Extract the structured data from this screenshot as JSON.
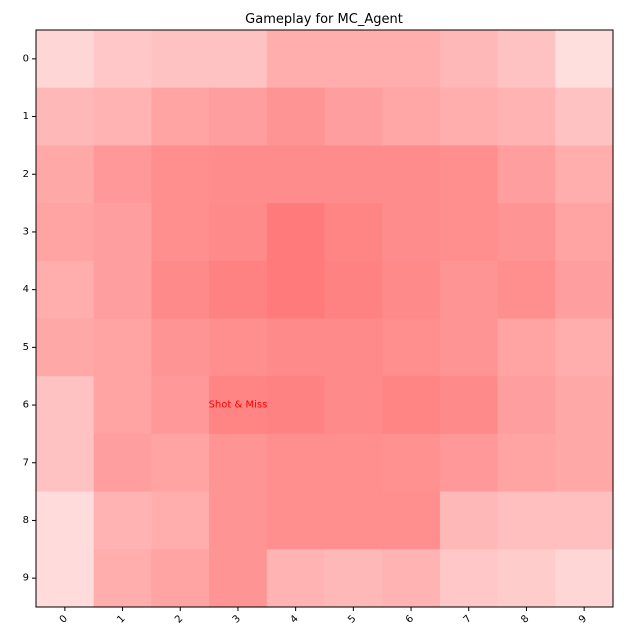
{
  "chart_data": {
    "type": "heatmap",
    "title": "Gameplay for MC_Agent",
    "x_ticks": [
      "0",
      "1",
      "2",
      "3",
      "4",
      "5",
      "6",
      "7",
      "8",
      "9"
    ],
    "y_ticks": [
      "0",
      "1",
      "2",
      "3",
      "4",
      "5",
      "6",
      "7",
      "8",
      "9"
    ],
    "colormap": {
      "low": "#ffffff",
      "high": "#ff0000"
    },
    "values": [
      [
        0.16,
        0.22,
        0.24,
        0.24,
        0.32,
        0.32,
        0.32,
        0.28,
        0.24,
        0.13
      ],
      [
        0.28,
        0.3,
        0.36,
        0.38,
        0.42,
        0.38,
        0.35,
        0.32,
        0.3,
        0.24
      ],
      [
        0.34,
        0.4,
        0.44,
        0.45,
        0.45,
        0.45,
        0.45,
        0.44,
        0.38,
        0.32
      ],
      [
        0.36,
        0.38,
        0.44,
        0.46,
        0.52,
        0.48,
        0.45,
        0.44,
        0.42,
        0.36
      ],
      [
        0.32,
        0.38,
        0.46,
        0.49,
        0.52,
        0.49,
        0.46,
        0.42,
        0.44,
        0.38
      ],
      [
        0.34,
        0.36,
        0.42,
        0.44,
        0.46,
        0.46,
        0.44,
        0.42,
        0.36,
        0.32
      ],
      [
        0.24,
        0.36,
        0.4,
        0.48,
        0.49,
        0.46,
        0.48,
        0.46,
        0.38,
        0.34
      ],
      [
        0.24,
        0.38,
        0.36,
        0.42,
        0.44,
        0.44,
        0.43,
        0.4,
        0.36,
        0.34
      ],
      [
        0.14,
        0.3,
        0.32,
        0.42,
        0.44,
        0.44,
        0.44,
        0.28,
        0.25,
        0.25
      ],
      [
        0.14,
        0.32,
        0.36,
        0.42,
        0.3,
        0.28,
        0.3,
        0.22,
        0.2,
        0.16
      ]
    ],
    "annotations": [
      {
        "text": "Shot & Miss",
        "x": 3,
        "y": 6
      }
    ],
    "grid": false
  }
}
